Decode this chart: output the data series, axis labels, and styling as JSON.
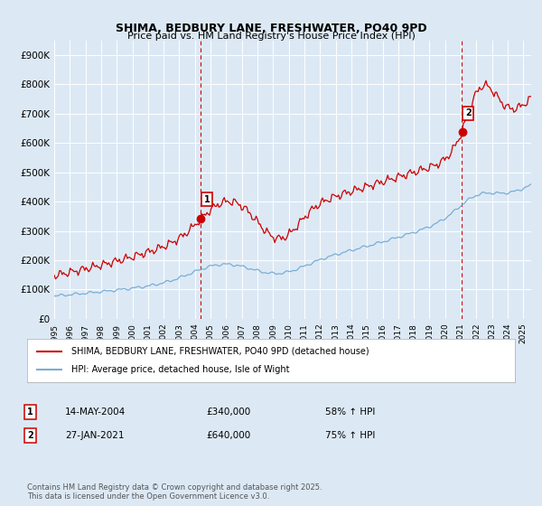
{
  "title": "SHIMA, BEDBURY LANE, FRESHWATER, PO40 9PD",
  "subtitle": "Price paid vs. HM Land Registry's House Price Index (HPI)",
  "background_color": "#dce9f5",
  "plot_bg_color": "#dce9f5",
  "ylim": [
    0,
    950000
  ],
  "yticks": [
    0,
    100000,
    200000,
    300000,
    400000,
    500000,
    600000,
    700000,
    800000,
    900000
  ],
  "ytick_labels": [
    "£0",
    "£100K",
    "£200K",
    "£300K",
    "£400K",
    "£500K",
    "£600K",
    "£700K",
    "£800K",
    "£900K"
  ],
  "sale1_date": "14-MAY-2004",
  "sale1_price": 340000,
  "sale1_pct": "58% ↑ HPI",
  "sale1_x": 2004.37,
  "sale1_label": "1",
  "sale2_date": "27-JAN-2021",
  "sale2_price": 640000,
  "sale2_pct": "75% ↑ HPI",
  "sale2_x": 2021.07,
  "sale2_label": "2",
  "legend_line1": "SHIMA, BEDBURY LANE, FRESHWATER, PO40 9PD (detached house)",
  "legend_line2": "HPI: Average price, detached house, Isle of Wight",
  "footer": "Contains HM Land Registry data © Crown copyright and database right 2025.\nThis data is licensed under the Open Government Licence v3.0.",
  "red_color": "#cc0000",
  "blue_color": "#7aadd4",
  "vline_color": "#cc0000",
  "xlim_left": 1995,
  "xlim_right": 2025.5
}
